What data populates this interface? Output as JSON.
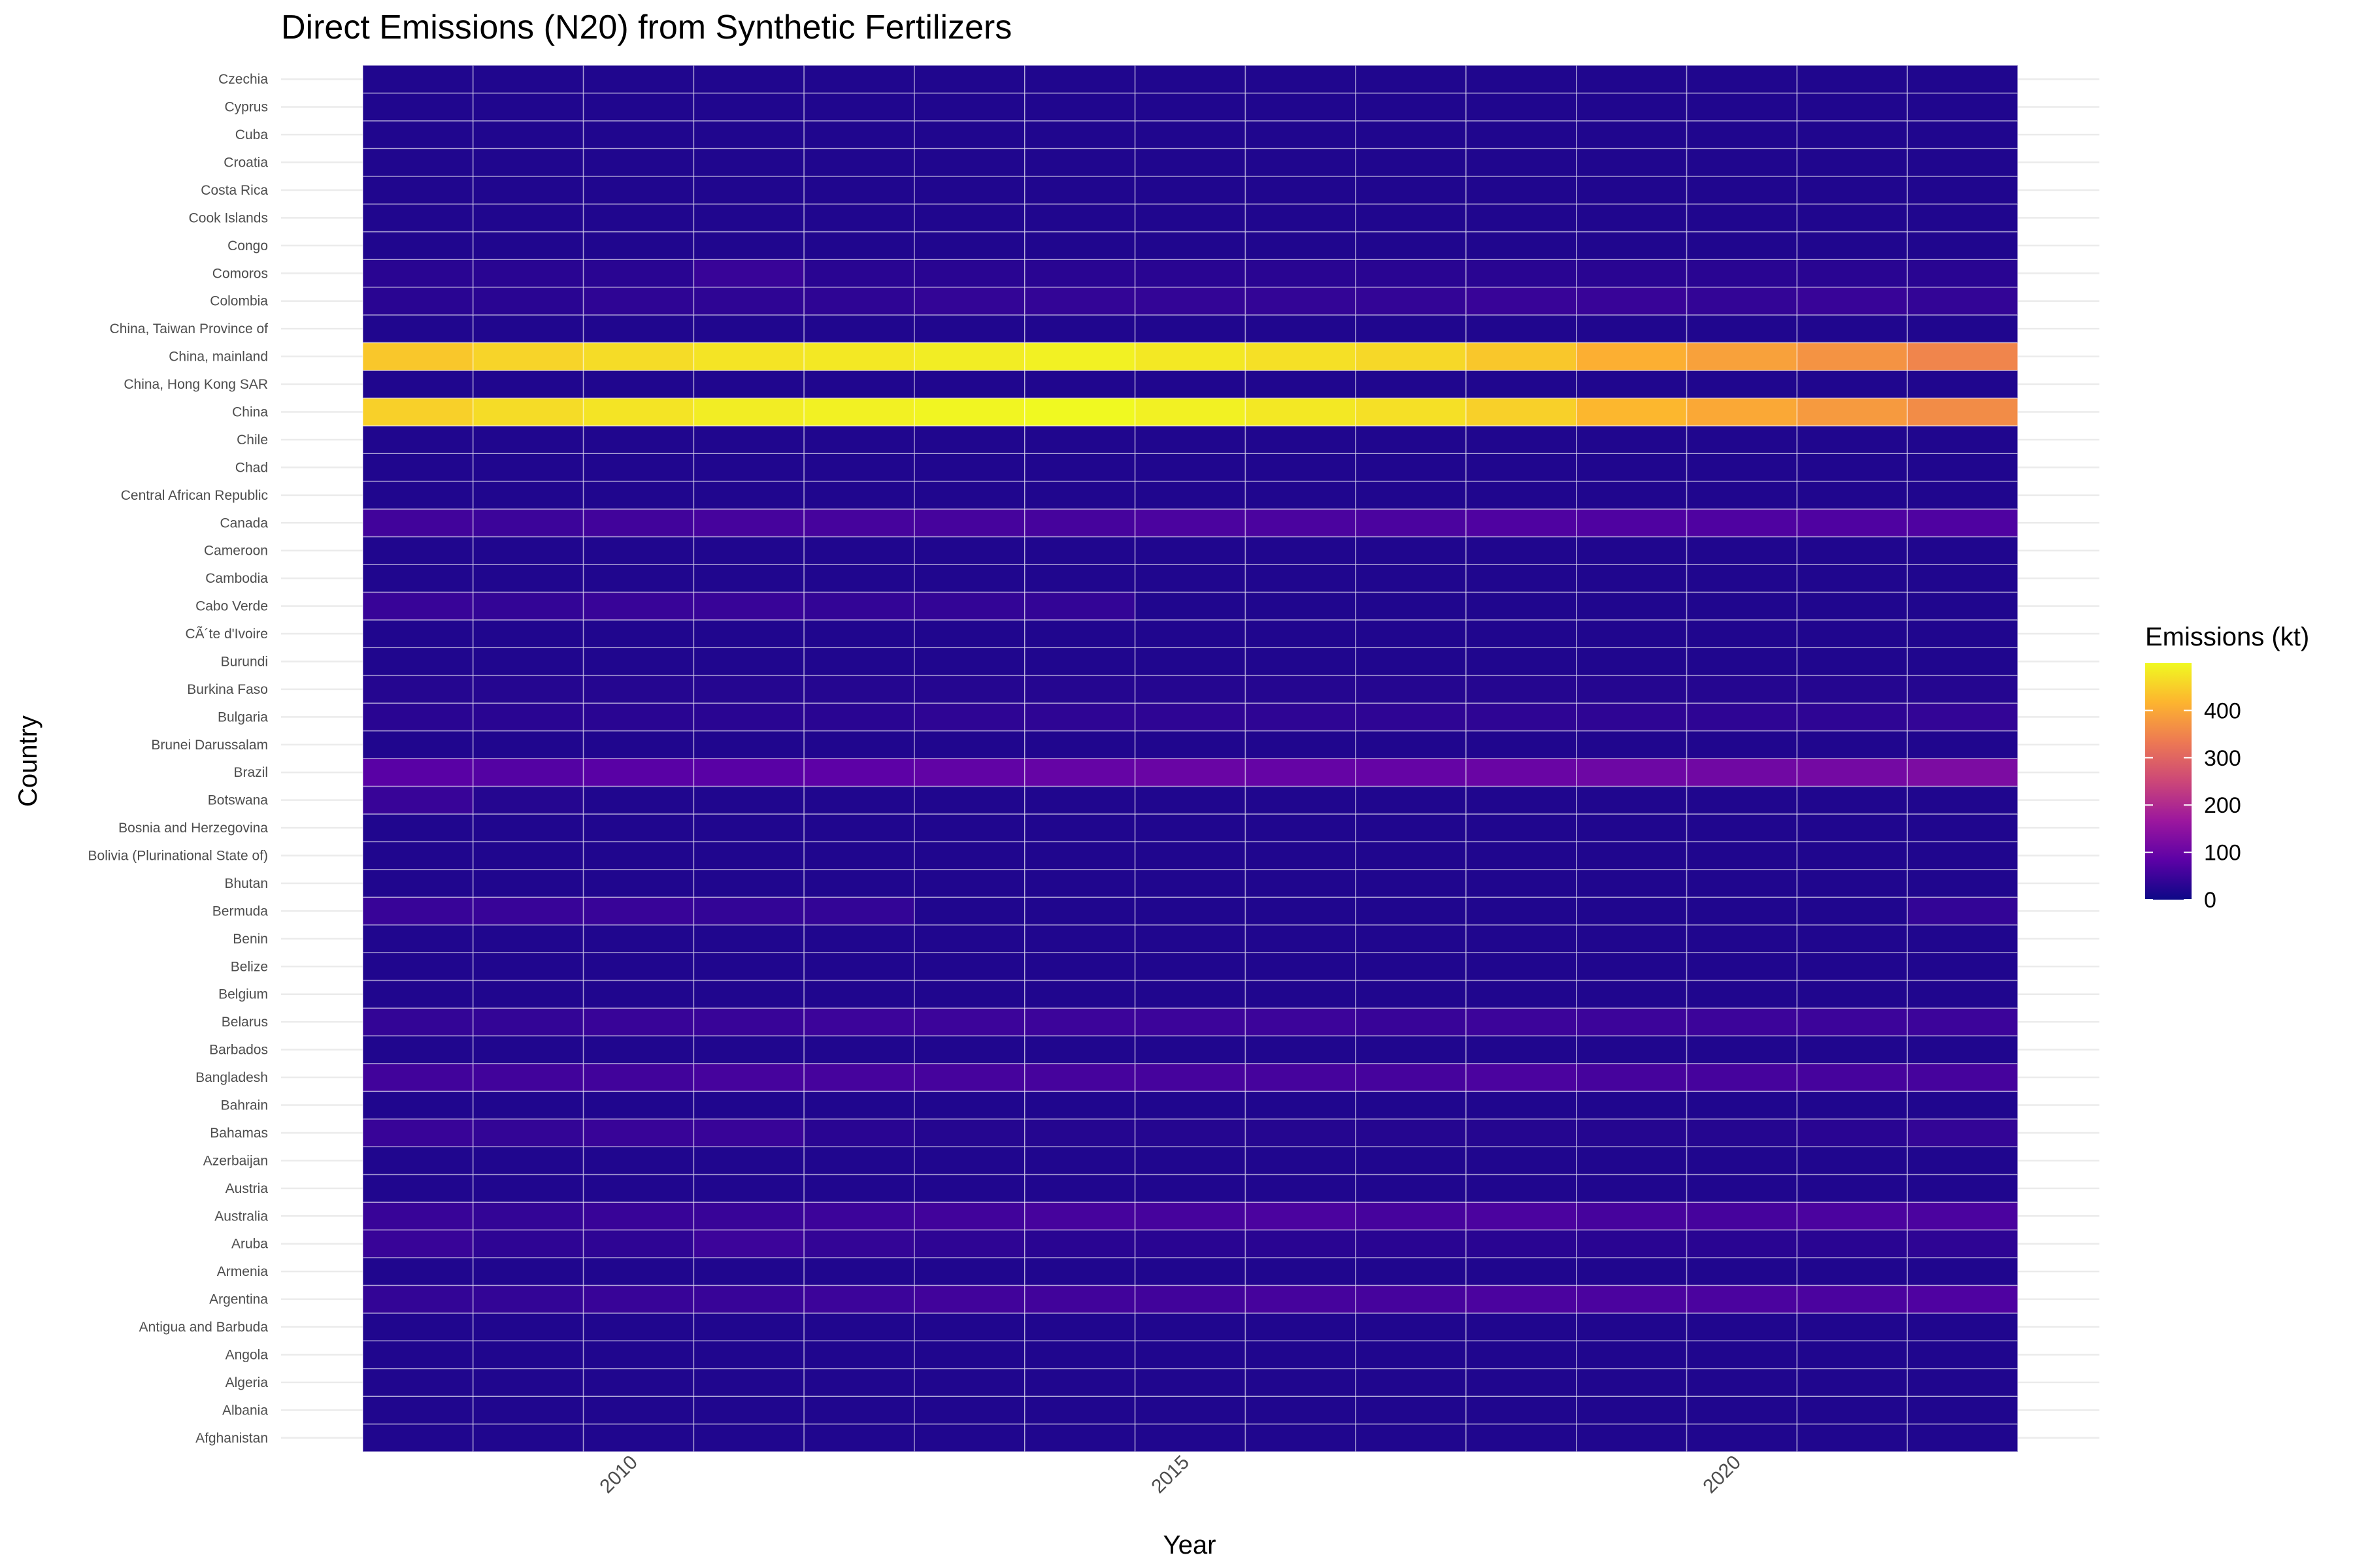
{
  "chart_data": {
    "type": "heatmap",
    "title": "Direct Emissions (N20) from Synthetic Fertilizers",
    "xlabel": "Year",
    "ylabel": "Country",
    "years": [
      2008,
      2009,
      2010,
      2011,
      2012,
      2013,
      2014,
      2015,
      2016,
      2017,
      2018,
      2019,
      2020,
      2021,
      2022
    ],
    "x_ticks": [
      2010,
      2015,
      2020
    ],
    "countries": [
      "Afghanistan",
      "Albania",
      "Algeria",
      "Angola",
      "Antigua and Barbuda",
      "Argentina",
      "Armenia",
      "Aruba",
      "Australia",
      "Austria",
      "Azerbaijan",
      "Bahamas",
      "Bahrain",
      "Bangladesh",
      "Barbados",
      "Belarus",
      "Belgium",
      "Belize",
      "Benin",
      "Bermuda",
      "Bhutan",
      "Bolivia (Plurinational State of)",
      "Bosnia and Herzegovina",
      "Botswana",
      "Brazil",
      "Brunei Darussalam",
      "Bulgaria",
      "Burkina Faso",
      "Burundi",
      "CÃ´te d'Ivoire",
      "Cabo Verde",
      "Cambodia",
      "Cameroon",
      "Canada",
      "Central African Republic",
      "Chad",
      "Chile",
      "China",
      "China, Hong Kong SAR",
      "China, mainland",
      "China, Taiwan Province of",
      "Colombia",
      "Comoros",
      "Congo",
      "Cook Islands",
      "Costa Rica",
      "Croatia",
      "Cuba",
      "Cyprus",
      "Czechia"
    ],
    "values": {
      "Argentina": [
        40,
        40,
        45,
        45,
        50,
        55,
        55,
        55,
        60,
        60,
        65,
        65,
        65,
        65,
        70
      ],
      "Aruba": [
        45,
        35,
        35,
        50,
        40,
        35,
        30,
        30,
        30,
        30,
        30,
        30,
        30,
        30,
        35
      ],
      "Australia": [
        45,
        40,
        45,
        45,
        50,
        55,
        60,
        60,
        65,
        60,
        65,
        60,
        60,
        65,
        65
      ],
      "Bahamas": [
        45,
        40,
        45,
        45,
        30,
        25,
        25,
        25,
        25,
        25,
        25,
        25,
        25,
        30,
        40
      ],
      "Bangladesh": [
        55,
        55,
        55,
        60,
        60,
        60,
        60,
        60,
        60,
        60,
        65,
        60,
        60,
        60,
        60
      ],
      "Belarus": [
        40,
        40,
        45,
        45,
        50,
        50,
        50,
        50,
        50,
        45,
        50,
        50,
        50,
        50,
        50
      ],
      "Bermuda": [
        45,
        45,
        45,
        40,
        40,
        20,
        20,
        20,
        20,
        20,
        20,
        20,
        20,
        20,
        40
      ],
      "Botswana": [
        45,
        25,
        20,
        20,
        20,
        20,
        20,
        20,
        20,
        20,
        20,
        20,
        20,
        20,
        20
      ],
      "Brazil": [
        80,
        75,
        80,
        80,
        85,
        90,
        95,
        100,
        95,
        95,
        100,
        105,
        110,
        115,
        125
      ],
      "Bulgaria": [
        30,
        30,
        30,
        30,
        30,
        35,
        35,
        35,
        35,
        35,
        35,
        35,
        35,
        35,
        40
      ],
      "Burkina Faso": [
        25,
        25,
        25,
        25,
        25,
        25,
        25,
        25,
        25,
        25,
        25,
        25,
        25,
        25,
        25
      ],
      "Cabo Verde": [
        45,
        40,
        45,
        45,
        40,
        40,
        40,
        20,
        20,
        20,
        20,
        20,
        20,
        20,
        20
      ],
      "Canada": [
        55,
        50,
        55,
        60,
        60,
        60,
        60,
        65,
        65,
        65,
        70,
        70,
        70,
        70,
        70
      ],
      "China": [
        450,
        465,
        475,
        485,
        490,
        495,
        500,
        490,
        480,
        470,
        450,
        420,
        400,
        380,
        360
      ],
      "China, mainland": [
        440,
        455,
        465,
        475,
        480,
        485,
        490,
        480,
        470,
        460,
        440,
        410,
        390,
        370,
        350
      ],
      "Colombia": [
        30,
        30,
        35,
        35,
        35,
        40,
        40,
        40,
        40,
        40,
        45,
        45,
        40,
        45,
        40
      ],
      "Comoros": [
        30,
        30,
        30,
        45,
        30,
        30,
        30,
        30,
        30,
        30,
        30,
        30,
        30,
        30,
        30
      ],
      "Congo": [
        20,
        20,
        20,
        20,
        20,
        20,
        20,
        20,
        20,
        20,
        20,
        20,
        20,
        20,
        20
      ]
    },
    "default_value": 20,
    "colorbar": {
      "title": "Emissions (kt)",
      "min": 0,
      "max": 500,
      "ticks": [
        0,
        100,
        200,
        300,
        400
      ],
      "colors": [
        "#0d0887",
        "#5c01a6",
        "#9c179e",
        "#cc4778",
        "#ed7953",
        "#fdb42f",
        "#f0f921"
      ]
    }
  }
}
